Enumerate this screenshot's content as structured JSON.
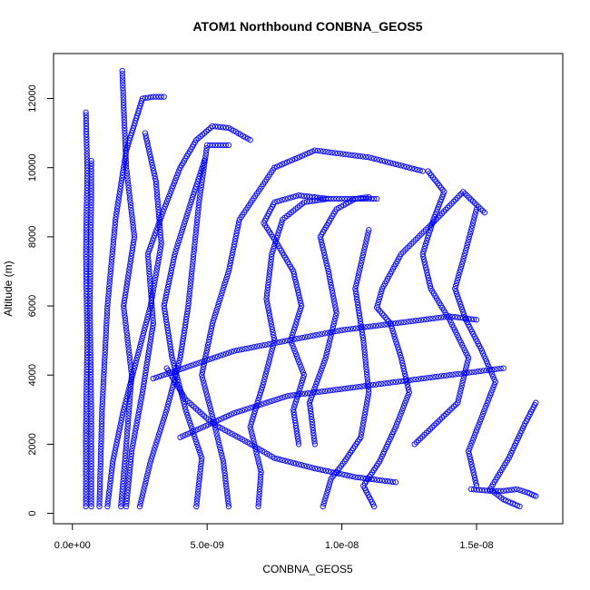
{
  "chart_data": {
    "type": "scatter",
    "title": "ATOM1 Northbound CONBNA_GEOS5",
    "xlabel": "CONBNA_GEOS5",
    "ylabel": "Altitude (m)",
    "xlim": [
      -7e-10,
      1.82e-08
    ],
    "ylim": [
      -300,
      13300
    ],
    "x_ticks": [
      0,
      5e-09,
      1e-08,
      1.5e-08
    ],
    "x_tick_labels": [
      "0.0e+00",
      "5.0e-09",
      "1.0e-08",
      "1.5e-08"
    ],
    "y_ticks": [
      0,
      2000,
      4000,
      6000,
      8000,
      10000,
      12000
    ],
    "y_tick_labels": [
      "0",
      "2000",
      "4000",
      "6000",
      "8000",
      "10000",
      "12000"
    ],
    "marker": "open-circle",
    "color": "#0000ff",
    "series": [
      {
        "x": [
          5e-10,
          5e-10,
          5.5e-10,
          5e-10,
          5.5e-10,
          5e-10
        ],
        "y": [
          200,
          2500,
          5000,
          7500,
          10000,
          11600
        ]
      },
      {
        "x": [
          7e-10,
          7e-10,
          6.5e-10,
          7e-10,
          7e-10
        ],
        "y": [
          200,
          3000,
          6000,
          9000,
          10200
        ]
      },
      {
        "x": [
          1e-09,
          1.1e-09,
          1.3e-09,
          1.6e-09,
          2e-09,
          2.2e-09,
          2.4e-09,
          2.6e-09,
          3e-09,
          3.4e-09
        ],
        "y": [
          200,
          3000,
          6000,
          8500,
          10500,
          11000,
          11500,
          12000,
          12050,
          12050
        ]
      },
      {
        "x": [
          1.3e-09,
          1.5e-09,
          1.9e-09,
          2.4e-09,
          2.9e-09,
          3.3e-09,
          3.1e-09,
          2.7e-09
        ],
        "y": [
          200,
          1500,
          3000,
          4500,
          6000,
          7800,
          9600,
          11000
        ]
      },
      {
        "x": [
          1.8e-09,
          2e-09,
          2.2e-09,
          1.9e-09,
          2.3e-09,
          2e-09,
          1.9e-09,
          1.85e-09
        ],
        "y": [
          200,
          2000,
          4000,
          6000,
          8000,
          10000,
          11800,
          12800
        ]
      },
      {
        "x": [
          2e-09,
          2.2e-09,
          2.6e-09,
          3e-09,
          2.8e-09,
          3.4e-09,
          4e-09,
          4.6e-09,
          5.2e-09,
          5.8e-09,
          6.6e-09
        ],
        "y": [
          200,
          1800,
          3500,
          5500,
          7500,
          8800,
          10000,
          10800,
          11200,
          11150,
          10800
        ]
      },
      {
        "x": [
          2.5e-09,
          2.9e-09,
          3.5e-09,
          4e-09,
          4.3e-09,
          4.5e-09,
          4.7e-09,
          5e-09,
          5.8e-09
        ],
        "y": [
          200,
          1500,
          3000,
          4500,
          6000,
          7500,
          9000,
          10650,
          10650
        ]
      },
      {
        "x": [
          4.6e-09,
          4.8e-09,
          4.2e-09,
          3.7e-09,
          3.4e-09,
          3.8e-09,
          4.4e-09,
          4.9e-09
        ],
        "y": [
          200,
          1600,
          3000,
          4500,
          6000,
          7500,
          9000,
          10200
        ]
      },
      {
        "x": [
          5.8e-09,
          5.6e-09,
          5.2e-09,
          4.8e-09,
          5.2e-09,
          5.8e-09,
          6.2e-09,
          7.5e-09,
          9e-09,
          1.1e-08,
          1.3e-08
        ],
        "y": [
          200,
          1500,
          2800,
          4000,
          5500,
          7000,
          8500,
          10000,
          10500,
          10300,
          9900
        ]
      },
      {
        "x": [
          6.9e-09,
          7e-09,
          6.6e-09,
          7.1e-09,
          7.5e-09,
          7.2e-09,
          7.4e-09,
          7.8e-09,
          8.6e-09,
          9.5e-09,
          1.05e-08,
          1.13e-08
        ],
        "y": [
          200,
          1200,
          2500,
          3800,
          5000,
          6200,
          7500,
          8500,
          9000,
          9100,
          9100,
          9100
        ]
      },
      {
        "x": [
          8.4e-09,
          8.2e-09,
          8.6e-09,
          8.1e-09,
          8.5e-09,
          8.2e-09,
          7.6e-09,
          7.1e-09,
          7.5e-09,
          8.4e-09,
          9.5e-09
        ],
        "y": [
          2000,
          3000,
          4000,
          5000,
          6000,
          7000,
          7800,
          8400,
          9000,
          9200,
          9100
        ]
      },
      {
        "x": [
          9e-09,
          8.8e-09,
          9.4e-09,
          9.8e-09,
          9.5e-09,
          9.2e-09,
          9.8e-09,
          1.05e-08,
          1.1e-08
        ],
        "y": [
          2000,
          3200,
          4500,
          5800,
          7000,
          8000,
          8800,
          9100,
          9150
        ]
      },
      {
        "x": [
          9.3e-09,
          9.6e-09,
          1.01e-08,
          1.07e-08,
          1.1e-08,
          1.08e-08,
          1.05e-08,
          1.1e-08
        ],
        "y": [
          200,
          1000,
          1500,
          2200,
          3500,
          5000,
          6500,
          8200
        ]
      },
      {
        "x": [
          1.12e-08,
          1.08e-08,
          1.14e-08,
          1.2e-08,
          1.25e-08,
          1.22e-08,
          1.18e-08,
          1.13e-08,
          1.15e-08,
          1.22e-08,
          1.35e-08,
          1.45e-08,
          1.53e-08
        ],
        "y": [
          200,
          800,
          1500,
          2500,
          3500,
          4500,
          5500,
          5950,
          6500,
          7500,
          8500,
          9300,
          8700
        ]
      },
      {
        "x": [
          1.27e-08,
          1.35e-08,
          1.43e-08,
          1.47e-08,
          1.4e-08,
          1.33e-08,
          1.3e-08,
          1.34e-08,
          1.38e-08,
          1.32e-08
        ],
        "y": [
          2000,
          2600,
          3200,
          4500,
          5600,
          6500,
          7500,
          8500,
          9300,
          9900
        ]
      },
      {
        "x": [
          1.5e-08,
          1.47e-08,
          1.52e-08,
          1.57e-08,
          1.52e-08,
          1.46e-08,
          1.42e-08,
          1.46e-08,
          1.5e-08
        ],
        "y": [
          800,
          1800,
          2800,
          3800,
          4700,
          5600,
          6500,
          7600,
          8800
        ]
      },
      {
        "x": [
          1.66e-08,
          1.6e-08,
          1.55e-08,
          1.62e-08,
          1.68e-08,
          1.72e-08
        ],
        "y": [
          200,
          400,
          700,
          1600,
          2600,
          3200
        ]
      },
      {
        "x": [
          1.72e-08,
          1.69e-08,
          1.65e-08,
          1.6e-08,
          1.55e-08,
          1.48e-08
        ],
        "y": [
          500,
          600,
          700,
          650,
          650,
          700
        ]
      },
      {
        "x": [
          4e-09,
          6e-09,
          8e-09,
          1e-08,
          1.2e-08,
          1.4e-08,
          1.6e-08
        ],
        "y": [
          2200,
          2900,
          3400,
          3600,
          3800,
          4000,
          4200
        ]
      },
      {
        "x": [
          3e-09,
          4.5e-09,
          6e-09,
          8e-09,
          1e-08,
          1.2e-08,
          1.4e-08,
          1.5e-08
        ],
        "y": [
          3900,
          4300,
          4700,
          5000,
          5300,
          5500,
          5700,
          5600
        ]
      },
      {
        "x": [
          3.5e-09,
          4.2e-09,
          5.2e-09,
          6.4e-09,
          7.5e-09,
          9e-09,
          1.05e-08,
          1.2e-08
        ],
        "y": [
          4200,
          3300,
          2600,
          2100,
          1600,
          1300,
          1050,
          900
        ]
      }
    ]
  }
}
